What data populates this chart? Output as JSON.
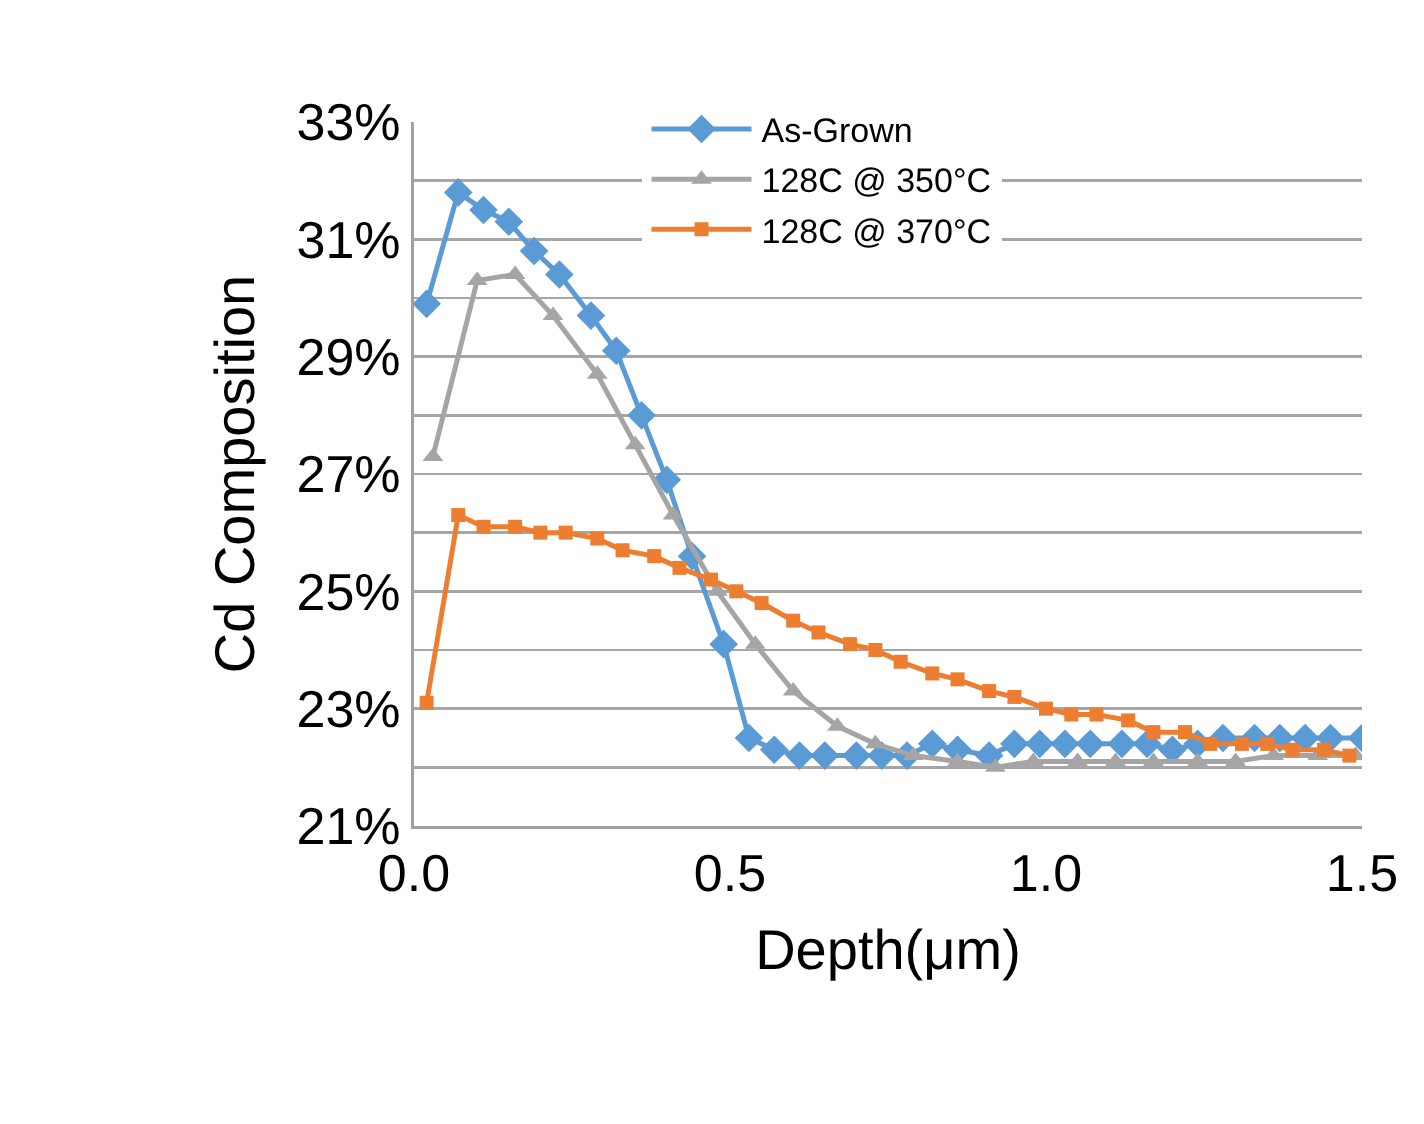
{
  "chart_data": {
    "type": "line",
    "xlabel": "Depth(μm)",
    "ylabel": "Cd Composition",
    "series": [
      {
        "name": "As-Grown",
        "color": "#5b9bd5",
        "marker": "diamond",
        "x": [
          0.02,
          0.07,
          0.11,
          0.15,
          0.19,
          0.23,
          0.28,
          0.32,
          0.36,
          0.4,
          0.44,
          0.49,
          0.53,
          0.57,
          0.61,
          0.65,
          0.7,
          0.74,
          0.78,
          0.82,
          0.86,
          0.91,
          0.95,
          0.99,
          1.03,
          1.07,
          1.12,
          1.16,
          1.2,
          1.24,
          1.28,
          1.33,
          1.37,
          1.41,
          1.45,
          1.5
        ],
        "values": [
          29.9,
          31.8,
          31.5,
          31.3,
          30.8,
          30.4,
          29.7,
          29.1,
          28.0,
          26.9,
          25.6,
          24.1,
          22.5,
          22.3,
          22.2,
          22.2,
          22.2,
          22.2,
          22.2,
          22.4,
          22.3,
          22.2,
          22.4,
          22.4,
          22.4,
          22.4,
          22.4,
          22.4,
          22.3,
          22.4,
          22.5,
          22.5,
          22.5,
          22.5,
          22.5,
          22.5
        ]
      },
      {
        "name": "128C @ 350°C",
        "color": "#a5a5a5",
        "marker": "triangle",
        "x": [
          0.03,
          0.1,
          0.16,
          0.22,
          0.29,
          0.35,
          0.41,
          0.48,
          0.54,
          0.6,
          0.67,
          0.73,
          0.79,
          0.86,
          0.92,
          0.98,
          1.05,
          1.11,
          1.17,
          1.24,
          1.3,
          1.36,
          1.43,
          1.49
        ],
        "values": [
          27.3,
          30.3,
          30.4,
          29.7,
          28.7,
          27.5,
          26.3,
          25.0,
          24.1,
          23.3,
          22.7,
          22.4,
          22.2,
          22.1,
          22.0,
          22.1,
          22.1,
          22.1,
          22.1,
          22.1,
          22.1,
          22.2,
          22.2,
          22.2
        ]
      },
      {
        "name": "128C @ 370°C",
        "color": "#ed7d31",
        "marker": "square",
        "x": [
          0.02,
          0.07,
          0.11,
          0.16,
          0.2,
          0.24,
          0.29,
          0.33,
          0.38,
          0.42,
          0.47,
          0.51,
          0.55,
          0.6,
          0.64,
          0.69,
          0.73,
          0.77,
          0.82,
          0.86,
          0.91,
          0.95,
          1.0,
          1.04,
          1.08,
          1.13,
          1.17,
          1.22,
          1.26,
          1.31,
          1.35,
          1.39,
          1.44,
          1.48
        ],
        "values": [
          23.1,
          26.3,
          26.1,
          26.1,
          26.0,
          26.0,
          25.9,
          25.7,
          25.6,
          25.4,
          25.2,
          25.0,
          24.8,
          24.5,
          24.3,
          24.1,
          24.0,
          23.8,
          23.6,
          23.5,
          23.3,
          23.2,
          23.0,
          22.9,
          22.9,
          22.8,
          22.6,
          22.6,
          22.4,
          22.4,
          22.4,
          22.3,
          22.3,
          22.2
        ]
      }
    ],
    "xlim": [
      0,
      1.5
    ],
    "xticks": [
      {
        "value": 0,
        "label": "0.0"
      },
      {
        "value": 0.5,
        "label": "0.5"
      },
      {
        "value": 1,
        "label": "1.0"
      },
      {
        "value": 1.5,
        "label": "1.5"
      }
    ],
    "ylim": [
      21,
      33
    ],
    "yticks": [
      {
        "value": 21,
        "label": "21%"
      },
      {
        "value": 22,
        "label": null
      },
      {
        "value": 23,
        "label": "23%"
      },
      {
        "value": 24,
        "label": null
      },
      {
        "value": 25,
        "label": "25%"
      },
      {
        "value": 26,
        "label": null
      },
      {
        "value": 27,
        "label": "27%"
      },
      {
        "value": 28,
        "label": null
      },
      {
        "value": 29,
        "label": "29%"
      },
      {
        "value": 30,
        "label": null
      },
      {
        "value": 31,
        "label": "31%"
      },
      {
        "value": 32,
        "label": null
      },
      {
        "value": 33,
        "label": "33%"
      }
    ],
    "grid": "y",
    "legend": "top",
    "line_style": "solid"
  }
}
